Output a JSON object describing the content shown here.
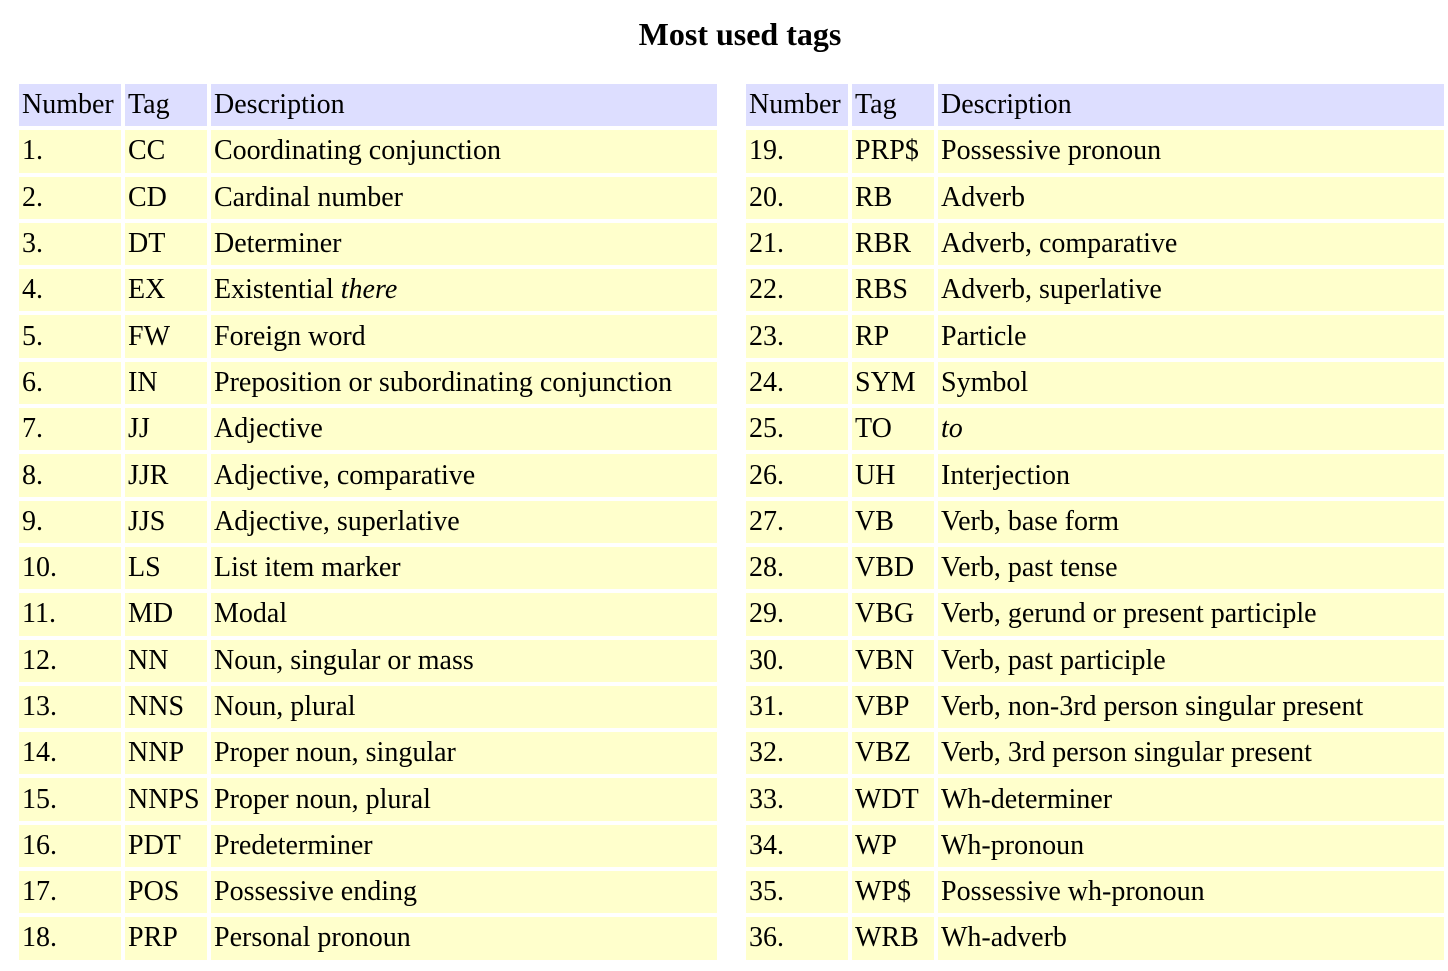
{
  "page": {
    "title": "Most used tags"
  },
  "table": {
    "headers": {
      "number": "Number",
      "tag": "Tag",
      "description": "Description"
    },
    "left_rows": [
      {
        "num": "1.",
        "tag": "CC",
        "desc": "Coordinating conjunction",
        "desc_em": ""
      },
      {
        "num": "2.",
        "tag": "CD",
        "desc": "Cardinal number",
        "desc_em": ""
      },
      {
        "num": "3.",
        "tag": "DT",
        "desc": "Determiner",
        "desc_em": ""
      },
      {
        "num": "4.",
        "tag": "EX",
        "desc": "Existential ",
        "desc_em": "there"
      },
      {
        "num": "5.",
        "tag": "FW",
        "desc": "Foreign word",
        "desc_em": ""
      },
      {
        "num": "6.",
        "tag": "IN",
        "desc": "Preposition or subordinating conjunction",
        "desc_em": ""
      },
      {
        "num": "7.",
        "tag": "JJ",
        "desc": "Adjective",
        "desc_em": ""
      },
      {
        "num": "8.",
        "tag": "JJR",
        "desc": "Adjective, comparative",
        "desc_em": ""
      },
      {
        "num": "9.",
        "tag": "JJS",
        "desc": "Adjective, superlative",
        "desc_em": ""
      },
      {
        "num": "10.",
        "tag": "LS",
        "desc": "List item marker",
        "desc_em": ""
      },
      {
        "num": "11.",
        "tag": "MD",
        "desc": "Modal",
        "desc_em": ""
      },
      {
        "num": "12.",
        "tag": "NN",
        "desc": "Noun, singular or mass",
        "desc_em": ""
      },
      {
        "num": "13.",
        "tag": "NNS",
        "desc": "Noun, plural",
        "desc_em": ""
      },
      {
        "num": "14.",
        "tag": "NNP",
        "desc": "Proper noun, singular",
        "desc_em": ""
      },
      {
        "num": "15.",
        "tag": "NNPS",
        "desc": "Proper noun, plural",
        "desc_em": ""
      },
      {
        "num": "16.",
        "tag": "PDT",
        "desc": "Predeterminer",
        "desc_em": ""
      },
      {
        "num": "17.",
        "tag": "POS",
        "desc": "Possessive ending",
        "desc_em": ""
      },
      {
        "num": "18.",
        "tag": "PRP",
        "desc": "Personal pronoun",
        "desc_em": ""
      }
    ],
    "right_rows": [
      {
        "num": "19.",
        "tag": "PRP$",
        "desc": "Possessive pronoun",
        "desc_em": ""
      },
      {
        "num": "20.",
        "tag": "RB",
        "desc": "Adverb",
        "desc_em": ""
      },
      {
        "num": "21.",
        "tag": "RBR",
        "desc": "Adverb, comparative",
        "desc_em": ""
      },
      {
        "num": "22.",
        "tag": "RBS",
        "desc": "Adverb, superlative",
        "desc_em": ""
      },
      {
        "num": "23.",
        "tag": "RP",
        "desc": "Particle",
        "desc_em": ""
      },
      {
        "num": "24.",
        "tag": "SYM",
        "desc": "Symbol",
        "desc_em": ""
      },
      {
        "num": "25.",
        "tag": "TO",
        "desc": "",
        "desc_em": "to"
      },
      {
        "num": "26.",
        "tag": "UH",
        "desc": "Interjection",
        "desc_em": ""
      },
      {
        "num": "27.",
        "tag": "VB",
        "desc": "Verb, base form",
        "desc_em": ""
      },
      {
        "num": "28.",
        "tag": "VBD",
        "desc": "Verb, past tense",
        "desc_em": ""
      },
      {
        "num": "29.",
        "tag": "VBG",
        "desc": "Verb, gerund or present participle",
        "desc_em": ""
      },
      {
        "num": "30.",
        "tag": "VBN",
        "desc": "Verb, past participle",
        "desc_em": ""
      },
      {
        "num": "31.",
        "tag": "VBP",
        "desc": "Verb, non-3rd person singular present",
        "desc_em": ""
      },
      {
        "num": "32.",
        "tag": "VBZ",
        "desc": "Verb, 3rd person singular present",
        "desc_em": ""
      },
      {
        "num": "33.",
        "tag": "WDT",
        "desc": "Wh-determiner",
        "desc_em": ""
      },
      {
        "num": "34.",
        "tag": "WP",
        "desc": "Wh-pronoun",
        "desc_em": ""
      },
      {
        "num": "35.",
        "tag": "WP$",
        "desc": "Possessive wh-pronoun",
        "desc_em": ""
      },
      {
        "num": "36.",
        "tag": "WRB",
        "desc": "Wh-adverb",
        "desc_em": ""
      }
    ]
  },
  "colors": {
    "header_bg": "#dddeff",
    "cell_bg": "#ffffcc"
  }
}
